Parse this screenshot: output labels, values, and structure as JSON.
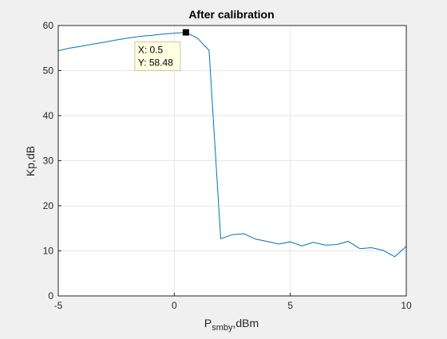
{
  "chart_data": {
    "type": "line",
    "title": "After calibration",
    "xlabel": {
      "main": "P",
      "sub": "smby",
      "suffix": ",dBm"
    },
    "ylabel": "Kp,dB",
    "xlim": [
      -5,
      10
    ],
    "ylim": [
      0,
      60
    ],
    "xticks": [
      -5,
      0,
      5,
      10
    ],
    "yticks": [
      0,
      10,
      20,
      30,
      40,
      50,
      60
    ],
    "grid": true,
    "series": [
      {
        "color": "#0072bd",
        "x": [
          -5,
          -4.5,
          -4,
          -3.5,
          -3,
          -2.5,
          -2,
          -1.5,
          -1,
          -0.5,
          0,
          0.5,
          1,
          1.5,
          2,
          2.5,
          3,
          3.5,
          4,
          4.5,
          5,
          5.5,
          6,
          6.5,
          7,
          7.5,
          8,
          8.5,
          9,
          9.5,
          10
        ],
        "y": [
          54.4,
          55.0,
          55.4,
          55.9,
          56.3,
          56.8,
          57.2,
          57.6,
          57.8,
          58.1,
          58.3,
          58.48,
          57.2,
          54.5,
          12.7,
          13.6,
          13.8,
          12.6,
          12.1,
          11.5,
          12.0,
          11.1,
          11.9,
          11.3,
          11.4,
          12.1,
          10.5,
          10.7,
          10.1,
          8.7,
          11.0
        ]
      }
    ],
    "datatip": {
      "x": 0.5,
      "y": 58.48,
      "x_label": "X: 0.5",
      "y_label": "Y: 58.48"
    }
  }
}
